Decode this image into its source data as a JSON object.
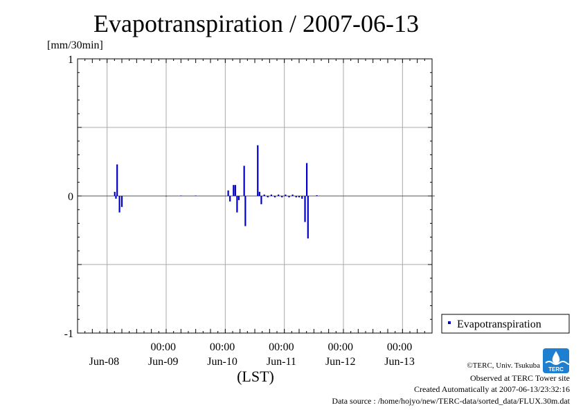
{
  "chart_data": {
    "type": "bar",
    "title": "Evapotranspiration / 2007-06-13",
    "ylabel": "[mm/30min]",
    "xlabel": "(LST)",
    "ylim": [
      -1,
      1
    ],
    "y_ticks": [
      {
        "value": -1,
        "label": "-1"
      },
      {
        "value": 0,
        "label": "0"
      },
      {
        "value": 1,
        "label": "1"
      }
    ],
    "x_range_days": [
      -0.5,
      5.5
    ],
    "x_ticks": [
      {
        "day": 0,
        "time": "",
        "date": "Jun-08"
      },
      {
        "day": 1,
        "time": "00:00",
        "date": "Jun-09"
      },
      {
        "day": 2,
        "time": "00:00",
        "date": "Jun-10"
      },
      {
        "day": 3,
        "time": "00:00",
        "date": "Jun-11"
      },
      {
        "day": 4,
        "time": "00:00",
        "date": "Jun-12"
      },
      {
        "day": 5,
        "time": "00:00",
        "date": "Jun-13"
      }
    ],
    "series": [
      {
        "name": "Evapotranspiration",
        "color": "#0000c8",
        "points": [
          [
            0.13,
            0.03
          ],
          [
            0.15,
            -0.02
          ],
          [
            0.17,
            0.23
          ],
          [
            0.21,
            -0.12
          ],
          [
            0.25,
            -0.08
          ],
          [
            1.0,
            -0.003
          ],
          [
            1.25,
            0.003
          ],
          [
            1.5,
            0.003
          ],
          [
            2.05,
            0.04
          ],
          [
            2.08,
            -0.04
          ],
          [
            2.14,
            0.08
          ],
          [
            2.17,
            0.08
          ],
          [
            2.2,
            -0.12
          ],
          [
            2.23,
            -0.03
          ],
          [
            2.32,
            0.22
          ],
          [
            2.34,
            -0.22
          ],
          [
            2.55,
            0.37
          ],
          [
            2.58,
            0.03
          ],
          [
            2.61,
            -0.06
          ],
          [
            2.66,
            0.01
          ],
          [
            2.72,
            -0.01
          ],
          [
            2.78,
            0.01
          ],
          [
            2.84,
            -0.01
          ],
          [
            2.9,
            0.01
          ],
          [
            2.96,
            -0.01
          ],
          [
            3.02,
            0.01
          ],
          [
            3.08,
            -0.01
          ],
          [
            3.14,
            0.01
          ],
          [
            3.2,
            -0.01
          ],
          [
            3.25,
            -0.01
          ],
          [
            3.3,
            -0.02
          ],
          [
            3.35,
            -0.19
          ],
          [
            3.38,
            0.24
          ],
          [
            3.4,
            -0.31
          ],
          [
            3.55,
            0.005
          ]
        ]
      }
    ],
    "legend": {
      "position": "bottom-right",
      "label": "Evapotranspiration"
    },
    "grid": true
  },
  "footer": {
    "copyright": "©TERC, Univ. Tsukuba",
    "observed": "Observed at TERC Tower site",
    "created": "Created Automatically at 2007-06-13/23:32:16",
    "source": "Data source : /home/hojyo/new/TERC-data/sorted_data/FLUX.30m.dat"
  },
  "logo": {
    "text": "TERC"
  }
}
